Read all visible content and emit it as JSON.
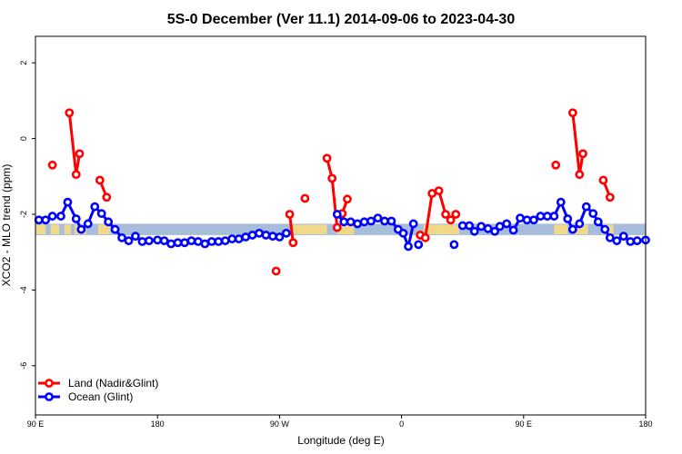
{
  "chart_data": {
    "type": "line",
    "title": "5S-0 December (Ver 11.1)   2014-09-06 to 2023-04-30",
    "xlabel": "Longitude (deg E)",
    "ylabel": "XCO2 - MLO trend (ppm)",
    "xlim": [
      90,
      450
    ],
    "ylim": [
      -7.3,
      2.7
    ],
    "x_ticks": [
      {
        "value": 90,
        "label": "90 E"
      },
      {
        "value": 162,
        "label": "180"
      },
      {
        "value": 234,
        "label": "90 W"
      },
      {
        "value": 306,
        "label": "0"
      },
      {
        "value": 378,
        "label": "90 E"
      },
      {
        "value": 450,
        "label": "180"
      }
    ],
    "y_ticks": [
      {
        "value": 2,
        "label": "2"
      },
      {
        "value": 0,
        "label": "0"
      },
      {
        "value": -2,
        "label": "-2"
      },
      {
        "value": -4,
        "label": "-4"
      },
      {
        "value": -6,
        "label": "-6"
      }
    ],
    "grid": false,
    "legend_position": "bottom-left",
    "map_strip": {
      "y_range": [
        -2.55,
        -2.25
      ],
      "ocean_color": "#a7bddb",
      "land_color": "#f2d98a"
    },
    "series": [
      {
        "name": "Land (Nadir&Glint)",
        "color": "#ff0000",
        "segments": [
          [
            [
              100,
              -0.7
            ]
          ],
          [
            [
              110,
              0.68
            ],
            [
              114,
              -0.95
            ],
            [
              116,
              -0.4
            ]
          ],
          [
            [
              128,
              -1.1
            ],
            [
              132,
              -1.55
            ]
          ],
          [
            [
              232,
              -3.5
            ]
          ],
          [
            [
              240,
              -2.0
            ],
            [
              242,
              -2.75
            ]
          ],
          [
            [
              249,
              -1.58
            ]
          ],
          [
            [
              262,
              -0.52
            ],
            [
              265,
              -1.05
            ],
            [
              268,
              -2.35
            ]
          ],
          [
            [
              271,
              -1.98
            ],
            [
              274,
              -1.6
            ]
          ],
          [
            [
              317,
              -2.55
            ],
            [
              320,
              -2.62
            ],
            [
              324,
              -1.45
            ],
            [
              328,
              -1.38
            ],
            [
              332,
              -2.0
            ],
            [
              335,
              -2.15
            ],
            [
              338,
              -2.0
            ]
          ],
          [
            [
              397,
              -0.7
            ]
          ],
          [
            [
              407,
              0.68
            ],
            [
              411,
              -0.95
            ],
            [
              413,
              -0.4
            ]
          ],
          [
            [
              425,
              -1.1
            ],
            [
              429,
              -1.55
            ]
          ]
        ]
      },
      {
        "name": "Ocean (Glint)",
        "color": "#0000ff",
        "segments": [
          [
            [
              92,
              -2.15
            ],
            [
              96,
              -2.15
            ],
            [
              100,
              -2.05
            ],
            [
              105,
              -2.05
            ],
            [
              109,
              -1.68
            ],
            [
              114,
              -2.12
            ],
            [
              117,
              -2.4
            ],
            [
              121,
              -2.25
            ],
            [
              125,
              -1.8
            ],
            [
              129,
              -1.98
            ],
            [
              133,
              -2.2
            ],
            [
              137,
              -2.4
            ],
            [
              141,
              -2.62
            ],
            [
              145,
              -2.7
            ],
            [
              149,
              -2.58
            ],
            [
              153,
              -2.72
            ],
            [
              157,
              -2.7
            ],
            [
              162,
              -2.68
            ],
            [
              166,
              -2.7
            ],
            [
              170,
              -2.78
            ],
            [
              174,
              -2.75
            ],
            [
              178,
              -2.75
            ],
            [
              182,
              -2.7
            ],
            [
              186,
              -2.72
            ],
            [
              190,
              -2.78
            ],
            [
              194,
              -2.72
            ],
            [
              198,
              -2.72
            ],
            [
              202,
              -2.7
            ],
            [
              206,
              -2.65
            ],
            [
              210,
              -2.65
            ],
            [
              214,
              -2.6
            ],
            [
              218,
              -2.55
            ],
            [
              222,
              -2.5
            ],
            [
              226,
              -2.55
            ],
            [
              230,
              -2.58
            ],
            [
              234,
              -2.6
            ],
            [
              238,
              -2.5
            ]
          ],
          [
            [
              268,
              -2.0
            ],
            [
              272,
              -2.2
            ],
            [
              276,
              -2.2
            ],
            [
              280,
              -2.25
            ],
            [
              284,
              -2.2
            ],
            [
              288,
              -2.18
            ],
            [
              292,
              -2.1
            ],
            [
              296,
              -2.18
            ],
            [
              300,
              -2.18
            ],
            [
              304,
              -2.4
            ],
            [
              307,
              -2.5
            ],
            [
              310,
              -2.85
            ],
            [
              313,
              -2.25
            ]
          ],
          [
            [
              316,
              -2.8
            ]
          ],
          [
            [
              337,
              -2.8
            ]
          ],
          [
            [
              342,
              -2.3
            ],
            [
              346,
              -2.3
            ],
            [
              349,
              -2.45
            ],
            [
              353,
              -2.32
            ],
            [
              357,
              -2.38
            ],
            [
              361,
              -2.45
            ],
            [
              364,
              -2.32
            ],
            [
              368,
              -2.25
            ],
            [
              372,
              -2.42
            ],
            [
              376,
              -2.1
            ],
            [
              380,
              -2.15
            ],
            [
              384,
              -2.15
            ],
            [
              388,
              -2.05
            ],
            [
              392,
              -2.05
            ],
            [
              396,
              -2.05
            ],
            [
              400,
              -1.68
            ],
            [
              404,
              -2.12
            ],
            [
              407,
              -2.4
            ],
            [
              411,
              -2.25
            ],
            [
              415,
              -1.8
            ],
            [
              419,
              -1.98
            ],
            [
              422,
              -2.2
            ],
            [
              426,
              -2.4
            ],
            [
              429,
              -2.62
            ],
            [
              433,
              -2.7
            ],
            [
              437,
              -2.58
            ],
            [
              441,
              -2.72
            ],
            [
              445,
              -2.7
            ],
            [
              450,
              -2.68
            ]
          ]
        ]
      }
    ]
  }
}
